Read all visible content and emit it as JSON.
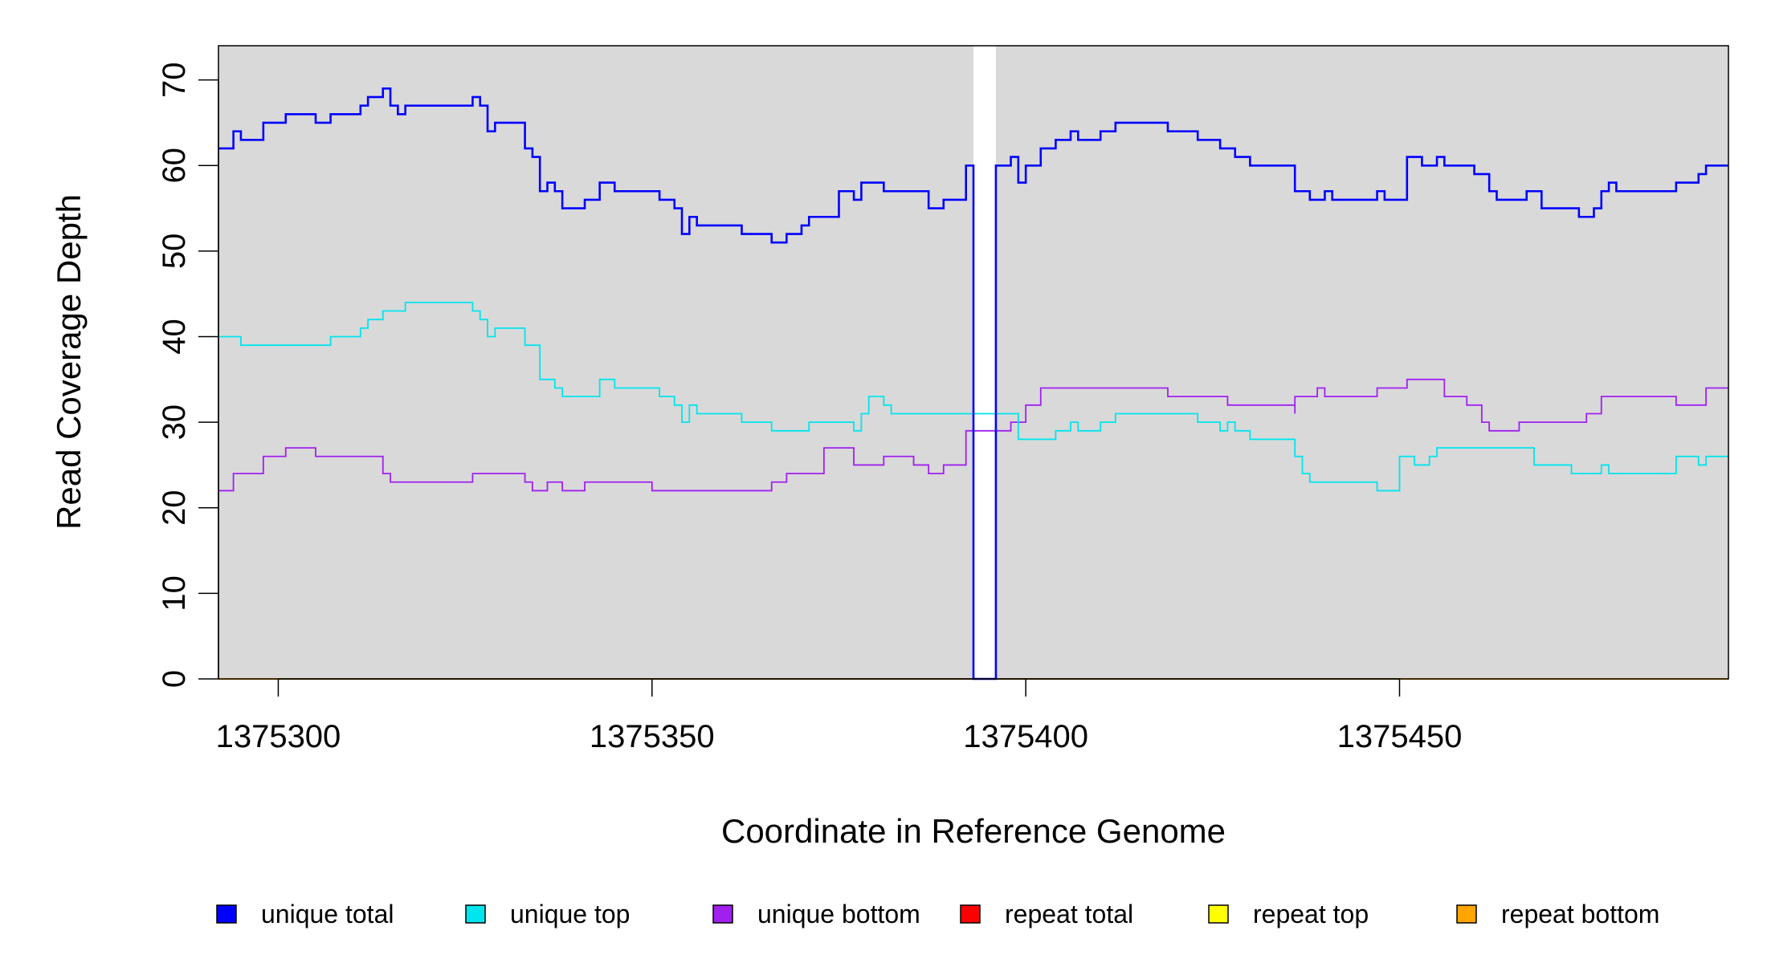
{
  "chart_data": {
    "type": "line",
    "title": "",
    "xlabel": "Coordinate in Reference Genome",
    "ylabel": "Read Coverage Depth",
    "xlim": [
      1375292,
      1375494
    ],
    "ylim": [
      0,
      74
    ],
    "x_ticks": [
      1375300,
      1375350,
      1375400,
      1375450
    ],
    "y_ticks": [
      0,
      10,
      20,
      30,
      40,
      50,
      60,
      70
    ],
    "x_tick_labels": [
      "1375300",
      "1375350",
      "1375400",
      "1375450"
    ],
    "y_tick_labels": [
      "0",
      "10",
      "20",
      "30",
      "40",
      "50",
      "60",
      "70"
    ],
    "panel_color": "#d9d9d9",
    "gap_region": [
      1375393,
      1375396
    ],
    "legend_position": "bottom",
    "series": [
      {
        "name": "unique total",
        "color": "#0000ff",
        "points": [
          [
            1375292,
            62
          ],
          [
            1375294,
            64
          ],
          [
            1375295,
            63
          ],
          [
            1375298,
            65
          ],
          [
            1375301,
            66
          ],
          [
            1375305,
            65
          ],
          [
            1375307,
            66
          ],
          [
            1375311,
            67
          ],
          [
            1375312,
            68
          ],
          [
            1375314,
            69
          ],
          [
            1375315,
            67
          ],
          [
            1375316,
            66
          ],
          [
            1375317,
            67
          ],
          [
            1375326,
            68
          ],
          [
            1375327,
            67
          ],
          [
            1375328,
            64
          ],
          [
            1375329,
            65
          ],
          [
            1375333,
            62
          ],
          [
            1375334,
            61
          ],
          [
            1375335,
            57
          ],
          [
            1375336,
            58
          ],
          [
            1375337,
            57
          ],
          [
            1375338,
            55
          ],
          [
            1375341,
            56
          ],
          [
            1375343,
            58
          ],
          [
            1375345,
            57
          ],
          [
            1375351,
            56
          ],
          [
            1375353,
            55
          ],
          [
            1375354,
            52
          ],
          [
            1375355,
            54
          ],
          [
            1375356,
            53
          ],
          [
            1375362,
            52
          ],
          [
            1375366,
            51
          ],
          [
            1375368,
            52
          ],
          [
            1375370,
            53
          ],
          [
            1375371,
            54
          ],
          [
            1375375,
            57
          ],
          [
            1375377,
            56
          ],
          [
            1375378,
            58
          ],
          [
            1375381,
            57
          ],
          [
            1375387,
            55
          ],
          [
            1375389,
            56
          ],
          [
            1375392,
            60
          ],
          [
            1375393,
            0
          ],
          [
            1375396,
            60
          ],
          [
            1375398,
            61
          ],
          [
            1375399,
            58
          ],
          [
            1375400,
            60
          ],
          [
            1375402,
            62
          ],
          [
            1375404,
            63
          ],
          [
            1375406,
            64
          ],
          [
            1375407,
            63
          ],
          [
            1375410,
            64
          ],
          [
            1375412,
            65
          ],
          [
            1375419,
            64
          ],
          [
            1375423,
            63
          ],
          [
            1375426,
            62
          ],
          [
            1375428,
            61
          ],
          [
            1375430,
            60
          ],
          [
            1375436,
            57
          ],
          [
            1375438,
            56
          ],
          [
            1375440,
            57
          ],
          [
            1375441,
            56
          ],
          [
            1375447,
            57
          ],
          [
            1375448,
            56
          ],
          [
            1375451,
            61
          ],
          [
            1375453,
            60
          ],
          [
            1375455,
            61
          ],
          [
            1375456,
            60
          ],
          [
            1375460,
            59
          ],
          [
            1375462,
            57
          ],
          [
            1375463,
            56
          ],
          [
            1375467,
            57
          ],
          [
            1375469,
            55
          ],
          [
            1375474,
            54
          ],
          [
            1375476,
            55
          ],
          [
            1375477,
            57
          ],
          [
            1375478,
            58
          ],
          [
            1375479,
            57
          ],
          [
            1375487,
            58
          ],
          [
            1375490,
            59
          ],
          [
            1375491,
            60
          ],
          [
            1375494,
            60
          ]
        ]
      },
      {
        "name": "unique top",
        "color": "#00e5ee",
        "points": [
          [
            1375292,
            40
          ],
          [
            1375295,
            39
          ],
          [
            1375307,
            40
          ],
          [
            1375311,
            41
          ],
          [
            1375312,
            42
          ],
          [
            1375314,
            43
          ],
          [
            1375317,
            44
          ],
          [
            1375326,
            43
          ],
          [
            1375327,
            42
          ],
          [
            1375328,
            40
          ],
          [
            1375329,
            41
          ],
          [
            1375333,
            39
          ],
          [
            1375335,
            35
          ],
          [
            1375337,
            34
          ],
          [
            1375338,
            33
          ],
          [
            1375343,
            35
          ],
          [
            1375345,
            34
          ],
          [
            1375351,
            33
          ],
          [
            1375353,
            32
          ],
          [
            1375354,
            30
          ],
          [
            1375355,
            32
          ],
          [
            1375356,
            31
          ],
          [
            1375362,
            30
          ],
          [
            1375366,
            29
          ],
          [
            1375371,
            30
          ],
          [
            1375377,
            29
          ],
          [
            1375378,
            31
          ],
          [
            1375379,
            33
          ],
          [
            1375381,
            32
          ],
          [
            1375382,
            31
          ],
          [
            1375392,
            31
          ],
          [
            1375396,
            31
          ],
          [
            1375399,
            28
          ],
          [
            1375404,
            29
          ],
          [
            1375406,
            30
          ],
          [
            1375407,
            29
          ],
          [
            1375410,
            30
          ],
          [
            1375412,
            31
          ],
          [
            1375419,
            31
          ],
          [
            1375423,
            30
          ],
          [
            1375426,
            29
          ],
          [
            1375427,
            30
          ],
          [
            1375428,
            29
          ],
          [
            1375430,
            28
          ],
          [
            1375436,
            26
          ],
          [
            1375437,
            24
          ],
          [
            1375438,
            23
          ],
          [
            1375447,
            22
          ],
          [
            1375450,
            26
          ],
          [
            1375452,
            25
          ],
          [
            1375454,
            26
          ],
          [
            1375455,
            27
          ],
          [
            1375468,
            25
          ],
          [
            1375473,
            24
          ],
          [
            1375477,
            25
          ],
          [
            1375478,
            24
          ],
          [
            1375487,
            26
          ],
          [
            1375490,
            25
          ],
          [
            1375491,
            26
          ],
          [
            1375494,
            26
          ]
        ]
      },
      {
        "name": "unique bottom",
        "color": "#a020f0",
        "points": [
          [
            1375292,
            22
          ],
          [
            1375294,
            24
          ],
          [
            1375298,
            26
          ],
          [
            1375301,
            27
          ],
          [
            1375305,
            26
          ],
          [
            1375314,
            24
          ],
          [
            1375315,
            23
          ],
          [
            1375326,
            24
          ],
          [
            1375333,
            23
          ],
          [
            1375334,
            22
          ],
          [
            1375336,
            23
          ],
          [
            1375338,
            22
          ],
          [
            1375341,
            23
          ],
          [
            1375350,
            22
          ],
          [
            1375366,
            23
          ],
          [
            1375368,
            24
          ],
          [
            1375373,
            27
          ],
          [
            1375377,
            25
          ],
          [
            1375381,
            26
          ],
          [
            1375385,
            25
          ],
          [
            1375387,
            24
          ],
          [
            1375389,
            25
          ],
          [
            1375392,
            29
          ],
          [
            1375396,
            29
          ],
          [
            1375398,
            30
          ],
          [
            1375400,
            32
          ],
          [
            1375402,
            34
          ],
          [
            1375419,
            33
          ],
          [
            1375427,
            32
          ],
          [
            1375436,
            31
          ],
          [
            1375436,
            33
          ],
          [
            1375439,
            34
          ],
          [
            1375440,
            33
          ],
          [
            1375447,
            34
          ],
          [
            1375451,
            35
          ],
          [
            1375456,
            33
          ],
          [
            1375459,
            32
          ],
          [
            1375461,
            30
          ],
          [
            1375462,
            29
          ],
          [
            1375466,
            30
          ],
          [
            1375475,
            31
          ],
          [
            1375477,
            33
          ],
          [
            1375487,
            32
          ],
          [
            1375491,
            34
          ],
          [
            1375494,
            34
          ]
        ]
      },
      {
        "name": "repeat total",
        "color": "#ff0000",
        "points": [
          [
            1375292,
            0
          ],
          [
            1375494,
            0
          ]
        ]
      },
      {
        "name": "repeat top",
        "color": "#ffff00",
        "points": [
          [
            1375292,
            0
          ],
          [
            1375494,
            0
          ]
        ]
      },
      {
        "name": "repeat bottom",
        "color": "#ffa500",
        "points": [
          [
            1375292,
            0
          ],
          [
            1375494,
            0
          ]
        ]
      }
    ]
  }
}
